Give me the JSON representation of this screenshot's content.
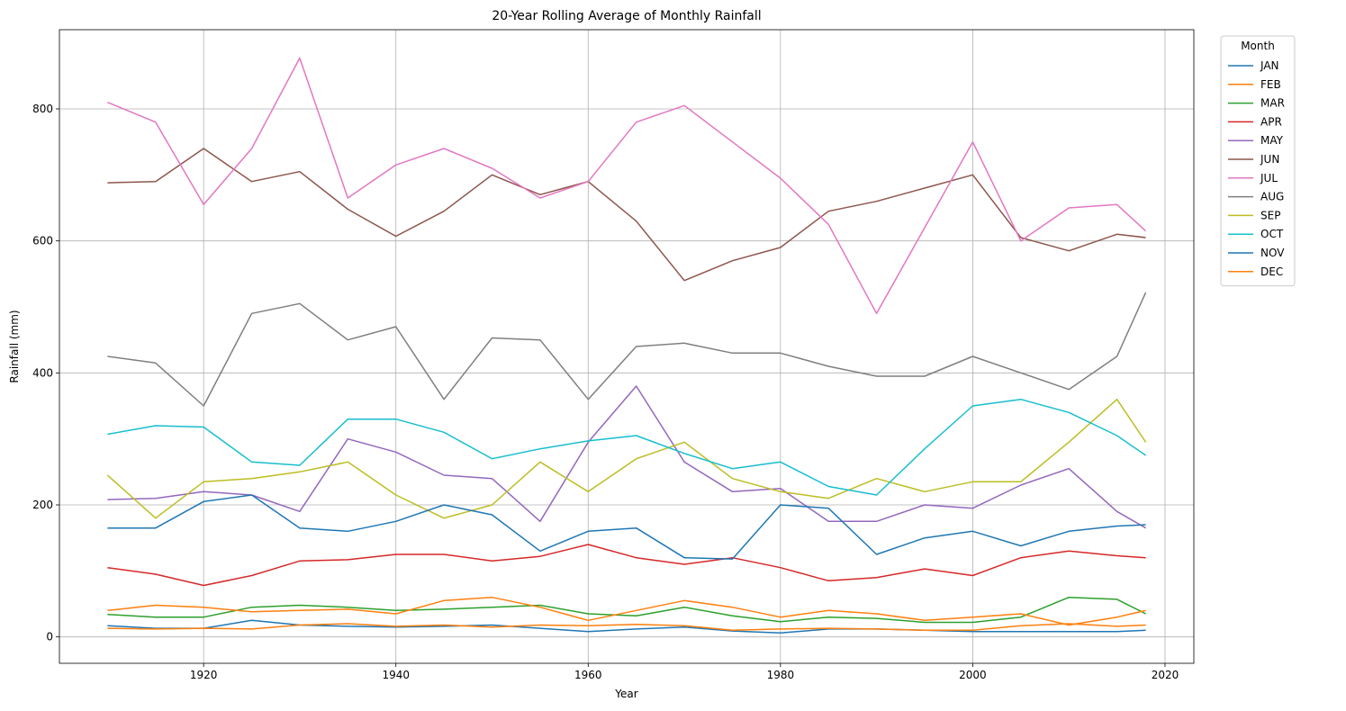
{
  "chart_data": {
    "type": "line",
    "title": "20-Year Rolling Average of Monthly Rainfall",
    "xlabel": "Year",
    "ylabel": "Rainfall (mm)",
    "xlim": [
      1905,
      2023
    ],
    "ylim": [
      -40,
      920
    ],
    "x_ticks": [
      "1920",
      "1940",
      "1960",
      "1980",
      "2000",
      "2020"
    ],
    "x_tick_values": [
      1920,
      1940,
      1960,
      1980,
      2000,
      2020
    ],
    "y_ticks": [
      "0",
      "200",
      "400",
      "600",
      "800"
    ],
    "y_tick_values": [
      0,
      200,
      400,
      600,
      800
    ],
    "grid": true,
    "legend": {
      "title": "Month",
      "placement": "outside-top-right"
    },
    "x": [
      1910,
      1915,
      1920,
      1925,
      1930,
      1935,
      1940,
      1945,
      1950,
      1955,
      1960,
      1965,
      1970,
      1975,
      1980,
      1985,
      1990,
      1995,
      2000,
      2005,
      2010,
      2015,
      2018
    ],
    "series": [
      {
        "name": "JAN",
        "color": "#1f77b4",
        "values": [
          17,
          13,
          13,
          25,
          18,
          16,
          15,
          16,
          18,
          13,
          8,
          12,
          15,
          9,
          6,
          12,
          12,
          10,
          8,
          8,
          8,
          8,
          10
        ]
      },
      {
        "name": "FEB",
        "color": "#ff7f0e",
        "values": [
          13,
          12,
          13,
          12,
          18,
          20,
          16,
          18,
          15,
          18,
          17,
          19,
          17,
          10,
          12,
          13,
          12,
          10,
          10,
          17,
          20,
          16,
          18
        ]
      },
      {
        "name": "MAR",
        "color": "#2ca02c",
        "values": [
          34,
          30,
          30,
          45,
          48,
          45,
          40,
          42,
          45,
          48,
          35,
          32,
          45,
          32,
          23,
          30,
          28,
          22,
          22,
          30,
          60,
          57,
          35
        ]
      },
      {
        "name": "APR",
        "color": "#d62728",
        "values": [
          105,
          95,
          78,
          93,
          115,
          117,
          125,
          125,
          115,
          122,
          140,
          120,
          110,
          120,
          105,
          85,
          90,
          103,
          93,
          120,
          130,
          123,
          120
        ]
      },
      {
        "name": "MAY",
        "color": "#9467bd",
        "values": [
          208,
          210,
          220,
          215,
          190,
          300,
          280,
          245,
          240,
          175,
          295,
          380,
          265,
          220,
          225,
          175,
          175,
          200,
          195,
          230,
          255,
          190,
          165
        ]
      },
      {
        "name": "JUN",
        "color": "#8c564b",
        "values": [
          688,
          690,
          740,
          690,
          705,
          648,
          607,
          645,
          700,
          670,
          690,
          630,
          540,
          570,
          590,
          645,
          660,
          680,
          700,
          605,
          585,
          610,
          605
        ]
      },
      {
        "name": "JUL",
        "color": "#e377c2",
        "values": [
          810,
          780,
          655,
          740,
          877,
          665,
          715,
          740,
          710,
          665,
          690,
          780,
          805,
          750,
          695,
          625,
          490,
          620,
          750,
          600,
          650,
          655,
          615
        ]
      },
      {
        "name": "AUG",
        "color": "#7f7f7f",
        "values": [
          425,
          415,
          350,
          490,
          505,
          450,
          470,
          360,
          453,
          450,
          360,
          440,
          445,
          430,
          430,
          410,
          395,
          395,
          425,
          400,
          375,
          425,
          522
        ]
      },
      {
        "name": "SEP",
        "color": "#bcbd22",
        "values": [
          245,
          180,
          235,
          240,
          250,
          265,
          215,
          180,
          200,
          265,
          220,
          270,
          295,
          240,
          220,
          210,
          240,
          220,
          235,
          235,
          295,
          360,
          295
        ]
      },
      {
        "name": "OCT",
        "color": "#17becf",
        "values": [
          307,
          320,
          318,
          265,
          260,
          330,
          330,
          310,
          270,
          285,
          297,
          305,
          278,
          255,
          265,
          228,
          215,
          285,
          350,
          360,
          340,
          305,
          275
        ]
      },
      {
        "name": "NOV",
        "color": "#1f77b4",
        "values": [
          165,
          165,
          205,
          215,
          165,
          160,
          175,
          200,
          185,
          130,
          160,
          165,
          120,
          118,
          200,
          195,
          125,
          150,
          160,
          138,
          160,
          168,
          170
        ]
      },
      {
        "name": "DEC",
        "color": "#ff7f0e",
        "values": [
          40,
          48,
          45,
          38,
          40,
          42,
          35,
          55,
          60,
          45,
          25,
          40,
          55,
          45,
          30,
          40,
          35,
          25,
          30,
          35,
          18,
          30,
          40
        ]
      }
    ]
  }
}
